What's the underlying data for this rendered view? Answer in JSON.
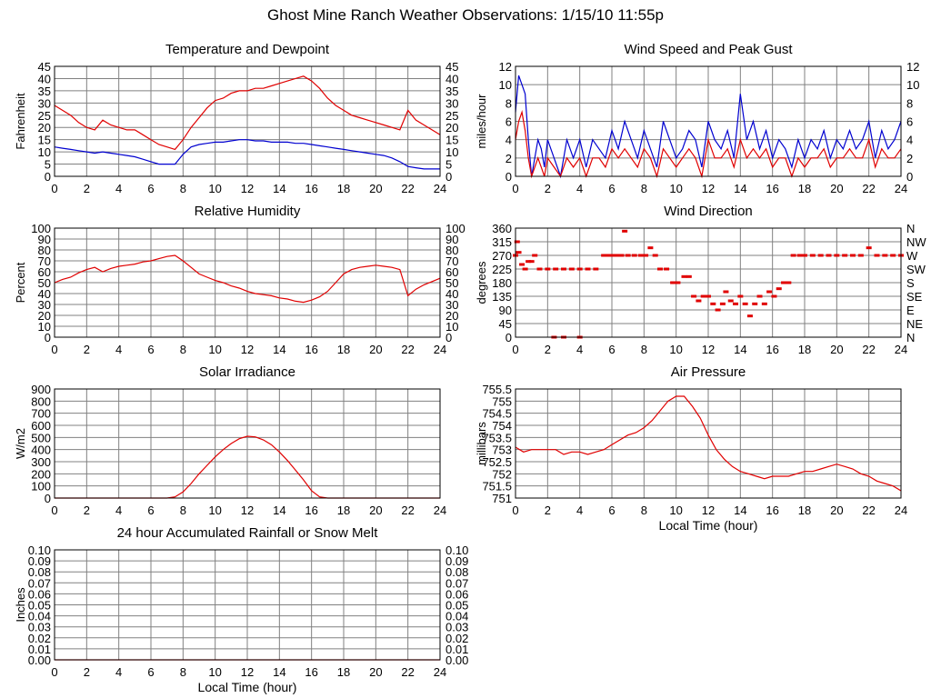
{
  "page": {
    "title": "Ghost Mine Ranch Weather Observations: 1/15/10 11:55p"
  },
  "colors": {
    "primary": "#e00000",
    "secondary": "#0000d0",
    "grid": "#808080",
    "frame": "#000000"
  },
  "chart_data": [
    {
      "id": "temperature",
      "type": "line",
      "title": "Temperature and Dewpoint",
      "xlabel": "",
      "ylabel": "Fahrenheit",
      "xlim": [
        0,
        24
      ],
      "ylim": [
        0,
        45
      ],
      "xticks": [
        0,
        2,
        4,
        6,
        8,
        10,
        12,
        14,
        16,
        18,
        20,
        22,
        24
      ],
      "yticks": [
        0,
        5,
        10,
        15,
        20,
        25,
        30,
        35,
        40,
        45
      ],
      "right_axis": true,
      "series": [
        {
          "color": "#e00000",
          "x": [
            0,
            0.5,
            1,
            1.5,
            2,
            2.5,
            3,
            3.5,
            4,
            4.5,
            5,
            5.5,
            6,
            6.5,
            7,
            7.5,
            8,
            8.5,
            9,
            9.5,
            10,
            10.5,
            11,
            11.5,
            12,
            12.5,
            13,
            13.5,
            14,
            14.5,
            15,
            15.5,
            16,
            16.5,
            17,
            17.5,
            18,
            18.5,
            19,
            19.5,
            20,
            20.5,
            21,
            21.5,
            22,
            22.5,
            23,
            23.5,
            24
          ],
          "values": [
            29,
            27,
            25,
            22,
            20,
            19,
            23,
            21,
            20,
            19,
            19,
            17,
            15,
            13,
            12,
            11,
            15,
            20,
            24,
            28,
            31,
            32,
            34,
            35,
            35,
            36,
            36,
            37,
            38,
            39,
            40,
            41,
            39,
            36,
            32,
            29,
            27,
            25,
            24,
            23,
            22,
            21,
            20,
            19,
            27,
            23,
            21,
            19,
            17
          ]
        },
        {
          "color": "#0000d0",
          "x": [
            0,
            0.5,
            1,
            1.5,
            2,
            2.5,
            3,
            3.5,
            4,
            4.5,
            5,
            5.5,
            6,
            6.5,
            7,
            7.5,
            8,
            8.5,
            9,
            9.5,
            10,
            10.5,
            11,
            11.5,
            12,
            12.5,
            13,
            13.5,
            14,
            14.5,
            15,
            15.5,
            16,
            16.5,
            17,
            17.5,
            18,
            18.5,
            19,
            19.5,
            20,
            20.5,
            21,
            21.5,
            22,
            22.5,
            23,
            23.5,
            24
          ],
          "values": [
            12,
            11.5,
            11,
            10.5,
            10,
            9.5,
            10,
            9.5,
            9,
            8.5,
            8,
            7,
            6,
            5,
            5,
            5,
            9,
            12,
            13,
            13.5,
            14,
            14,
            14.5,
            15,
            15,
            14.5,
            14.5,
            14,
            14,
            14,
            13.5,
            13.5,
            13,
            12.5,
            12,
            11.5,
            11,
            10.5,
            10,
            9.5,
            9,
            8.5,
            7.5,
            6,
            4,
            3.5,
            3,
            3,
            3
          ]
        }
      ]
    },
    {
      "id": "wind-speed",
      "type": "line",
      "title": "Wind Speed and Peak Gust",
      "xlabel": "",
      "ylabel": "miles/hour",
      "xlim": [
        0,
        24
      ],
      "ylim": [
        0,
        12
      ],
      "xticks": [
        0,
        2,
        4,
        6,
        8,
        10,
        12,
        14,
        16,
        18,
        20,
        22,
        24
      ],
      "yticks": [
        0,
        2,
        4,
        6,
        8,
        10,
        12
      ],
      "right_axis": true,
      "series": [
        {
          "color": "#0000d0",
          "x": [
            0,
            0.2,
            0.4,
            0.6,
            0.8,
            1,
            1.2,
            1.4,
            1.6,
            1.8,
            2,
            2.4,
            2.8,
            3.2,
            3.6,
            4,
            4.4,
            4.8,
            5.2,
            5.6,
            6,
            6.4,
            6.8,
            7.2,
            7.6,
            8,
            8.4,
            8.8,
            9.2,
            9.6,
            10,
            10.4,
            10.8,
            11.2,
            11.6,
            12,
            12.4,
            12.8,
            13.2,
            13.6,
            14,
            14.4,
            14.8,
            15.2,
            15.6,
            16,
            16.4,
            16.8,
            17.2,
            17.6,
            18,
            18.4,
            18.8,
            19.2,
            19.6,
            20,
            20.4,
            20.8,
            21.2,
            21.6,
            22,
            22.4,
            22.8,
            23.2,
            23.6,
            24
          ],
          "values": [
            7,
            11,
            10,
            9,
            4,
            0,
            2,
            4,
            3,
            1,
            4,
            2,
            0,
            4,
            2,
            4,
            1,
            4,
            3,
            2,
            5,
            3,
            6,
            4,
            2,
            5,
            3,
            1,
            6,
            4,
            2,
            3,
            5,
            4,
            1,
            6,
            4,
            3,
            5,
            2,
            9,
            4,
            6,
            3,
            5,
            2,
            4,
            3,
            1,
            4,
            2,
            4,
            3,
            5,
            2,
            4,
            3,
            5,
            3,
            4,
            6,
            2,
            5,
            3,
            4,
            6
          ]
        },
        {
          "color": "#e00000",
          "x": [
            0,
            0.2,
            0.4,
            0.6,
            0.8,
            1,
            1.2,
            1.4,
            1.6,
            1.8,
            2,
            2.4,
            2.8,
            3.2,
            3.6,
            4,
            4.4,
            4.8,
            5.2,
            5.6,
            6,
            6.4,
            6.8,
            7.2,
            7.6,
            8,
            8.4,
            8.8,
            9.2,
            9.6,
            10,
            10.4,
            10.8,
            11.2,
            11.6,
            12,
            12.4,
            12.8,
            13.2,
            13.6,
            14,
            14.4,
            14.8,
            15.2,
            15.6,
            16,
            16.4,
            16.8,
            17.2,
            17.6,
            18,
            18.4,
            18.8,
            19.2,
            19.6,
            20,
            20.4,
            20.8,
            21.2,
            21.6,
            22,
            22.4,
            22.8,
            23.2,
            23.6,
            24
          ],
          "values": [
            4,
            6,
            7,
            5,
            2,
            0,
            1,
            2,
            1,
            0,
            2,
            1,
            0,
            2,
            1,
            2,
            0,
            2,
            2,
            1,
            3,
            2,
            3,
            2,
            1,
            3,
            2,
            0,
            3,
            2,
            1,
            2,
            3,
            2,
            0,
            4,
            2,
            2,
            3,
            1,
            4,
            2,
            3,
            2,
            3,
            1,
            2,
            2,
            0,
            2,
            1,
            2,
            2,
            3,
            1,
            2,
            2,
            3,
            2,
            2,
            4,
            1,
            3,
            2,
            2,
            3
          ]
        }
      ]
    },
    {
      "id": "humidity",
      "type": "line",
      "title": "Relative Humidity",
      "xlabel": "",
      "ylabel": "Percent",
      "xlim": [
        0,
        24
      ],
      "ylim": [
        0,
        100
      ],
      "xticks": [
        0,
        2,
        4,
        6,
        8,
        10,
        12,
        14,
        16,
        18,
        20,
        22,
        24
      ],
      "yticks": [
        0,
        10,
        20,
        30,
        40,
        50,
        60,
        70,
        80,
        90,
        100
      ],
      "right_axis": true,
      "series": [
        {
          "color": "#e00000",
          "x": [
            0,
            0.5,
            1,
            1.5,
            2,
            2.5,
            3,
            3.5,
            4,
            4.5,
            5,
            5.5,
            6,
            6.5,
            7,
            7.5,
            8,
            8.5,
            9,
            9.5,
            10,
            10.5,
            11,
            11.5,
            12,
            12.5,
            13,
            13.5,
            14,
            14.5,
            15,
            15.5,
            16,
            16.5,
            17,
            17.5,
            18,
            18.5,
            19,
            19.5,
            20,
            20.5,
            21,
            21.5,
            22,
            22.5,
            23,
            23.5,
            24
          ],
          "values": [
            50,
            53,
            55,
            59,
            62,
            64,
            60,
            63,
            65,
            66,
            67,
            69,
            70,
            72,
            74,
            75,
            70,
            64,
            58,
            55,
            52,
            50,
            47,
            45,
            42,
            40,
            39,
            38,
            36,
            35,
            33,
            32,
            34,
            37,
            42,
            50,
            58,
            62,
            64,
            65,
            66,
            65,
            64,
            62,
            38,
            44,
            48,
            51,
            54
          ]
        }
      ]
    },
    {
      "id": "wind-direction",
      "type": "scatter",
      "title": "Wind Direction",
      "xlabel": "",
      "ylabel": "degrees",
      "xlim": [
        0,
        24
      ],
      "ylim": [
        0,
        360
      ],
      "xticks": [
        0,
        2,
        4,
        6,
        8,
        10,
        12,
        14,
        16,
        18,
        20,
        22,
        24
      ],
      "yticks": [
        0,
        45,
        90,
        135,
        180,
        225,
        270,
        315,
        360
      ],
      "right_labels": [
        "N",
        "NE",
        "E",
        "SE",
        "S",
        "SW",
        "W",
        "NW",
        "N"
      ],
      "series": [
        {
          "color": "#e00000",
          "x": [
            0,
            0.1,
            0.2,
            0.4,
            0.6,
            0.8,
            1,
            1.2,
            1.5,
            2,
            2.5,
            3,
            3.5,
            4,
            4.5,
            5,
            2.4,
            3,
            4,
            5.5,
            5.8,
            6,
            6.3,
            6.6,
            6.8,
            7,
            7.4,
            7.8,
            8.1,
            8.4,
            8.7,
            9,
            9.4,
            9.8,
            10.1,
            10.5,
            10.8,
            11.1,
            11.4,
            11.7,
            12,
            12.3,
            12.6,
            12.9,
            13.1,
            13.4,
            13.7,
            14,
            14.3,
            14.6,
            14.9,
            15.2,
            15.5,
            15.8,
            16.1,
            16.4,
            16.7,
            17,
            17.3,
            17.7,
            18,
            18.5,
            19,
            19.5,
            20,
            20.5,
            21,
            21.5,
            22,
            22.5,
            23,
            23.5,
            24
          ],
          "values": [
            270,
            315,
            280,
            240,
            225,
            250,
            250,
            270,
            225,
            225,
            225,
            225,
            225,
            225,
            225,
            225,
            0,
            0,
            0,
            270,
            270,
            270,
            270,
            270,
            350,
            270,
            270,
            270,
            270,
            295,
            270,
            225,
            225,
            180,
            180,
            200,
            200,
            135,
            120,
            135,
            135,
            110,
            90,
            110,
            150,
            120,
            110,
            135,
            110,
            70,
            110,
            135,
            110,
            150,
            135,
            160,
            180,
            180,
            270,
            270,
            270,
            270,
            270,
            270,
            270,
            270,
            270,
            270,
            295,
            270,
            270,
            270,
            270
          ]
        }
      ]
    },
    {
      "id": "solar",
      "type": "line",
      "title": "Solar Irradiance",
      "xlabel": "",
      "ylabel": "W/m2",
      "xlim": [
        0,
        24
      ],
      "ylim": [
        0,
        900
      ],
      "xticks": [
        0,
        2,
        4,
        6,
        8,
        10,
        12,
        14,
        16,
        18,
        20,
        22,
        24
      ],
      "yticks": [
        0,
        100,
        200,
        300,
        400,
        500,
        600,
        700,
        800,
        900
      ],
      "right_axis": false,
      "series": [
        {
          "color": "#e00000",
          "x": [
            0,
            7,
            7.5,
            8,
            8.5,
            9,
            9.5,
            10,
            10.5,
            11,
            11.5,
            12,
            12.5,
            13,
            13.5,
            14,
            14.5,
            15,
            15.5,
            16,
            16.5,
            17,
            24
          ],
          "values": [
            0,
            0,
            10,
            50,
            120,
            200,
            270,
            340,
            400,
            450,
            490,
            510,
            505,
            480,
            440,
            380,
            310,
            230,
            150,
            60,
            10,
            0,
            0
          ]
        }
      ]
    },
    {
      "id": "pressure",
      "type": "line",
      "title": "Air Pressure",
      "xlabel": "Local Time (hour)",
      "ylabel": "millibars",
      "xlim": [
        0,
        24
      ],
      "ylim": [
        751.0,
        755.5
      ],
      "xticks": [
        0,
        2,
        4,
        6,
        8,
        10,
        12,
        14,
        16,
        18,
        20,
        22,
        24
      ],
      "yticks": [
        751.0,
        751.5,
        752.0,
        752.5,
        753.0,
        753.5,
        754.0,
        754.5,
        755.0,
        755.5
      ],
      "right_axis": false,
      "series": [
        {
          "color": "#e00000",
          "x": [
            0,
            0.5,
            1,
            1.5,
            2,
            2.5,
            3,
            3.5,
            4,
            4.5,
            5,
            5.5,
            6,
            6.5,
            7,
            7.5,
            8,
            8.5,
            9,
            9.5,
            10,
            10.5,
            11,
            11.5,
            12,
            12.5,
            13,
            13.5,
            14,
            14.5,
            15,
            15.5,
            16,
            16.5,
            17,
            17.5,
            18,
            18.5,
            19,
            19.5,
            20,
            20.5,
            21,
            21.5,
            22,
            22.5,
            23,
            23.5,
            24
          ],
          "values": [
            753.1,
            752.9,
            753.0,
            753.0,
            753.0,
            753.0,
            752.8,
            752.9,
            752.9,
            752.8,
            752.9,
            753.0,
            753.2,
            753.4,
            753.6,
            753.7,
            753.9,
            754.2,
            754.6,
            755.0,
            755.2,
            755.2,
            754.8,
            754.3,
            753.6,
            753.0,
            752.6,
            752.3,
            752.1,
            752.0,
            751.9,
            751.8,
            751.9,
            751.9,
            751.9,
            752.0,
            752.1,
            752.1,
            752.2,
            752.3,
            752.4,
            752.3,
            752.2,
            752.0,
            751.9,
            751.7,
            751.6,
            751.5,
            751.3
          ]
        }
      ]
    },
    {
      "id": "rainfall",
      "type": "line",
      "title": "24 hour Accumulated Rainfall or Snow Melt",
      "xlabel": "Local Time (hour)",
      "ylabel": "Inches",
      "xlim": [
        0,
        24
      ],
      "ylim": [
        0,
        0.1
      ],
      "xticks": [
        0,
        2,
        4,
        6,
        8,
        10,
        12,
        14,
        16,
        18,
        20,
        22,
        24
      ],
      "yticks": [
        "0.00",
        "0.01",
        "0.02",
        "0.03",
        "0.04",
        "0.05",
        "0.06",
        "0.07",
        "0.08",
        "0.09",
        "0.10"
      ],
      "right_axis": true,
      "series": [
        {
          "color": "#e00000",
          "x": [
            0,
            24
          ],
          "values": [
            0,
            0
          ]
        }
      ]
    }
  ]
}
